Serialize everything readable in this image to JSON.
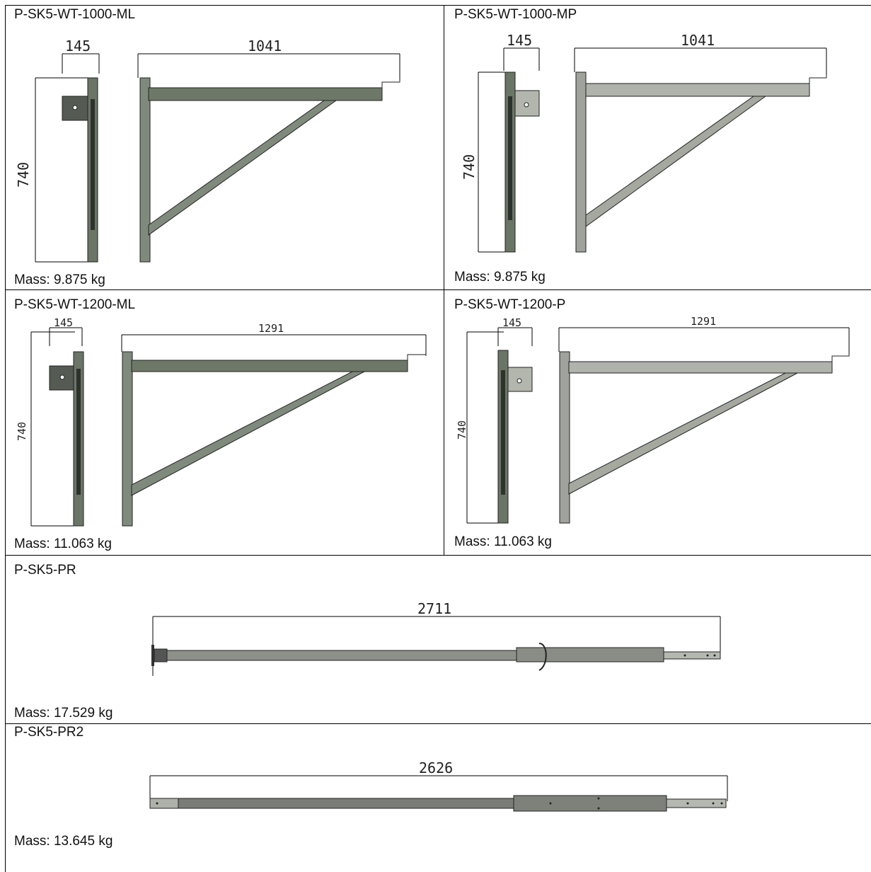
{
  "cells": [
    {
      "title": "P-SK5-WT-1000-ML",
      "mass": "Mass: 9.875 kg",
      "dim_width": "145",
      "dim_length": "1041",
      "dim_height": "740"
    },
    {
      "title": "P-SK5-WT-1000-MP",
      "mass": "Mass: 9.875 kg",
      "dim_width": "145",
      "dim_length": "1041",
      "dim_height": "740"
    },
    {
      "title": "P-SK5-WT-1200-ML",
      "mass": "Mass: 11.063 kg",
      "dim_width": "145",
      "dim_length": "1291",
      "dim_height": "740"
    },
    {
      "title": "P-SK5-WT-1200-P",
      "mass": "Mass: 11.063 kg",
      "dim_width": "145",
      "dim_length": "1291",
      "dim_height": "740"
    },
    {
      "title": "P-SK5-PR",
      "mass": "Mass: 17.529 kg",
      "dim_length": "2711"
    },
    {
      "title": "P-SK5-PR2",
      "mass": "Mass: 13.645 kg",
      "dim_length": "2626"
    }
  ],
  "colors": {
    "steel": "#7f8a7c",
    "steel_dark": "#4d5249",
    "galvanized": "#a9aca6",
    "line": "#000000"
  }
}
